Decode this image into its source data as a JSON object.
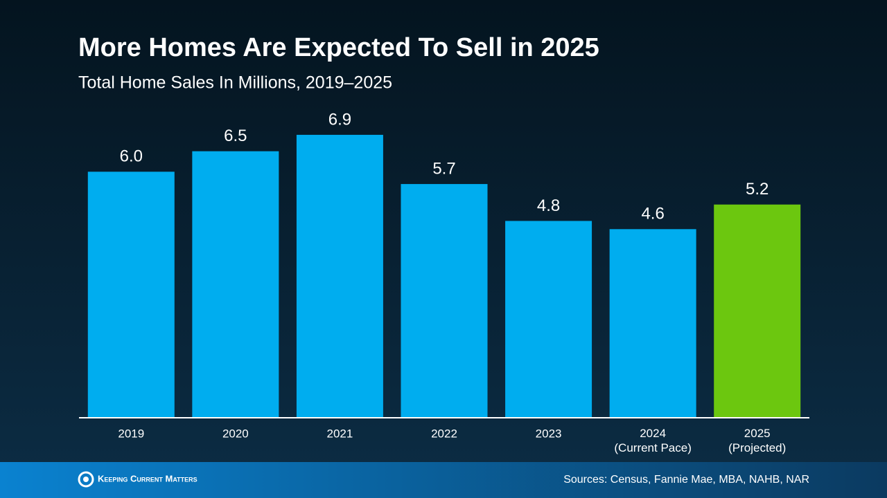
{
  "chart_data": {
    "type": "bar",
    "title": "More Homes Are Expected To Sell in 2025",
    "subtitle": "Total Home Sales In Millions, 2019–2025",
    "categories": [
      "2019",
      "2020",
      "2021",
      "2022",
      "2023",
      "2024\n(Current Pace)",
      "2025\n(Projected)"
    ],
    "values": [
      6.0,
      6.5,
      6.9,
      5.7,
      4.8,
      4.6,
      5.2
    ],
    "value_labels": [
      "6.0",
      "6.5",
      "6.9",
      "5.7",
      "4.8",
      "4.6",
      "5.2"
    ],
    "colors": [
      "#00adef",
      "#00adef",
      "#00adef",
      "#00adef",
      "#00adef",
      "#00adef",
      "#6cc70f"
    ],
    "ylim": [
      0,
      7
    ]
  },
  "footer": {
    "brand": "Keeping Current Matters",
    "sources": "Sources: Census, Fannie Mae, MBA, NAHB, NAR"
  }
}
